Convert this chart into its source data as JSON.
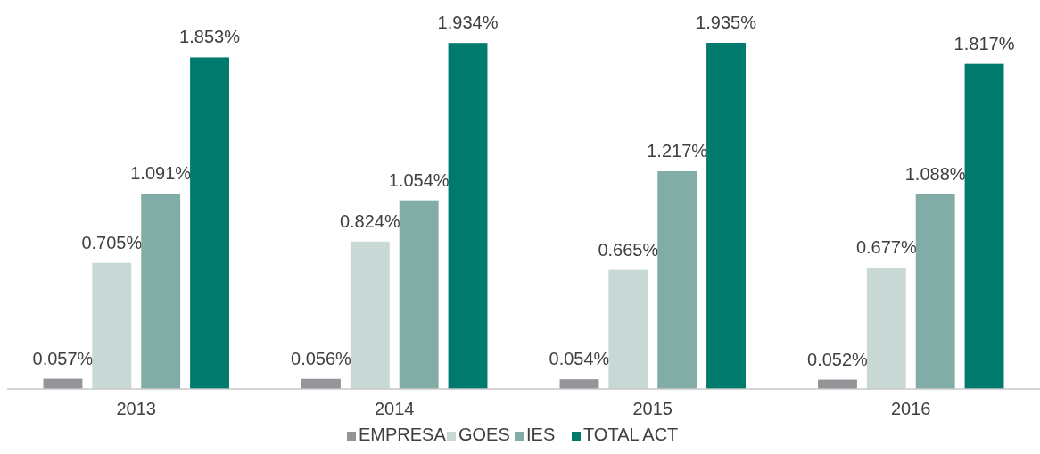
{
  "chart_data": {
    "type": "bar",
    "categories": [
      "2013",
      "2014",
      "2015",
      "2016"
    ],
    "series": [
      {
        "name": "EMPRESA",
        "color": "#939598",
        "values": [
          0.057,
          0.056,
          0.054,
          0.052
        ],
        "value_labels": [
          "0.057%",
          "0.056%",
          "0.054%",
          "0.052%"
        ]
      },
      {
        "name": "GOES",
        "color": "#c8d9d5",
        "values": [
          0.705,
          0.824,
          0.665,
          0.677
        ],
        "value_labels": [
          "0.705%",
          "0.824%",
          "0.665%",
          "0.677%"
        ]
      },
      {
        "name": "IES",
        "color": "#82aca6",
        "values": [
          1.091,
          1.054,
          1.217,
          1.088
        ],
        "value_labels": [
          "1.091%",
          "1.054%",
          "1.217%",
          "1.088%"
        ]
      },
      {
        "name": "TOTAL ACT",
        "color": "#007a6c",
        "values": [
          1.853,
          1.934,
          1.935,
          1.817
        ],
        "value_labels": [
          "1.853%",
          "1.934%",
          "1.935%",
          "1.817%"
        ]
      }
    ],
    "legend": "bottom"
  }
}
